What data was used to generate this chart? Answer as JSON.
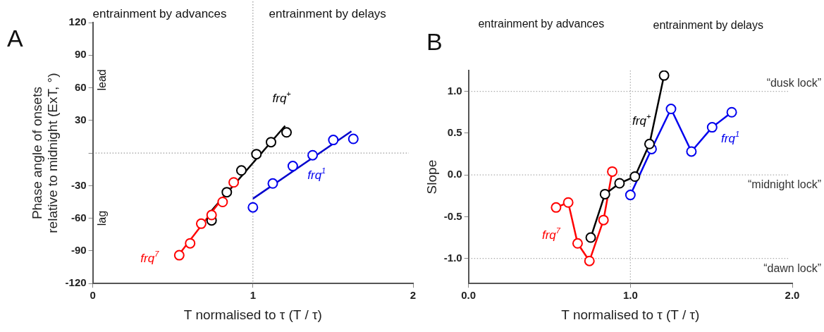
{
  "chart_data": [
    {
      "type": "scatter",
      "xlabel": "T normalised to τ (T / τ)",
      "ylabel": "Phase angle of onsets\nrelative to midnight (ExT, °)",
      "xlim": [
        0,
        2
      ],
      "xticks": [
        0,
        1,
        2
      ],
      "ylim": [
        -120,
        120
      ],
      "yticks": [
        -120,
        -90,
        -60,
        -30,
        {
          "value": 0,
          "label": null
        },
        30,
        60,
        90,
        120
      ],
      "grid": false,
      "legend": false,
      "marker": "circle",
      "annotations": [
        "A",
        "entrainment by advances",
        "entrainment by delays",
        "lead",
        "lag"
      ],
      "ref_lines": [
        {
          "axis": "x",
          "value": 1,
          "color": "#999999",
          "line_style": "dotted"
        },
        {
          "axis": "y",
          "value": 0,
          "color": "#999999",
          "line_style": "dotted"
        }
      ],
      "series": [
        {
          "type": "line",
          "color": "#000000",
          "marker": "none",
          "x": [
            0.742,
            1.201
          ],
          "values": [
            -53,
            25
          ]
        },
        {
          "type": "line",
          "color": "#ff0000",
          "marker": "none",
          "x": [
            0.54,
            0.86
          ],
          "values": [
            -93,
            -32
          ]
        },
        {
          "type": "line",
          "color": "#0000cc",
          "marker": "none",
          "x": [
            1.0,
            1.615
          ],
          "values": [
            -42,
            20
          ]
        },
        {
          "type": "scatter",
          "name": "frq$^{+}$",
          "color": "#000000",
          "x": [
            0.742,
            0.837,
            0.928,
            1.022,
            1.113,
            1.21
          ],
          "values": [
            -62,
            -36,
            -16,
            -1,
            10,
            19
          ]
        },
        {
          "type": "scatter",
          "name": "frq$^{7}$",
          "color": "#ff0000",
          "x": [
            0.54,
            0.608,
            0.677,
            0.742,
            0.811,
            0.88
          ],
          "values": [
            -94,
            -83,
            -65,
            -57,
            -45,
            -27
          ]
        },
        {
          "type": "scatter",
          "name": "frq$^{1}$",
          "color": "#0000ee",
          "x": [
            1.0,
            1.124,
            1.249,
            1.373,
            1.502,
            1.627
          ],
          "values": [
            -50,
            -28,
            -12,
            -2,
            12,
            13
          ]
        }
      ]
    },
    {
      "type": "line",
      "xlabel": "T normalised to τ (T / τ)",
      "ylabel": "Slope",
      "xlim": [
        0,
        2
      ],
      "xticks": [
        {
          "value": 0,
          "label": "0.0"
        },
        {
          "value": 1,
          "label": "1.0"
        },
        {
          "value": 2,
          "label": "2.0"
        }
      ],
      "ylim": [
        -1.3,
        1.25
      ],
      "yticks": [
        {
          "value": -1,
          "label": "-1.0"
        },
        -0.5,
        {
          "value": 0,
          "label": "0.0"
        },
        0.5,
        {
          "value": 1,
          "label": "1.0"
        }
      ],
      "grid": false,
      "legend": false,
      "marker": "circle",
      "annotations": [
        "B",
        "entrainment by advances",
        "entrainment by delays"
      ],
      "ref_lines": [
        {
          "axis": "y",
          "value": 1,
          "label": "“dusk lock”",
          "color": "#aaaaaa",
          "line_style": "dotted"
        },
        {
          "axis": "y",
          "value": 0,
          "label": "“midnight lock”",
          "color": "#aaaaaa",
          "line_style": "dotted"
        },
        {
          "axis": "y",
          "value": -1,
          "label": "“dawn lock”",
          "color": "#aaaaaa",
          "line_style": "dotted"
        },
        {
          "axis": "x",
          "value": 1,
          "color": "#aaaaaa",
          "line_style": "dotted"
        }
      ],
      "series": [
        {
          "name": "frq$^{7}$",
          "color": "#ff0000",
          "x": [
            0.541,
            0.616,
            0.674,
            0.747,
            0.834,
            0.888
          ],
          "values": [
            -0.39,
            -0.33,
            -0.82,
            -1.03,
            -0.54,
            0.04
          ]
        },
        {
          "name": "frq$^{1}$",
          "color": "#0000ee",
          "x": [
            1.0,
            1.131,
            1.251,
            1.377,
            1.505,
            1.626
          ],
          "values": [
            -0.24,
            0.31,
            0.79,
            0.28,
            0.57,
            0.75
          ]
        },
        {
          "name": "frq$^{+}$",
          "color": "#000000",
          "x": [
            0.755,
            0.843,
            0.933,
            1.028,
            1.118,
            1.208
          ],
          "values": [
            -0.75,
            -0.23,
            -0.1,
            -0.02,
            0.37,
            1.19
          ]
        }
      ]
    }
  ]
}
